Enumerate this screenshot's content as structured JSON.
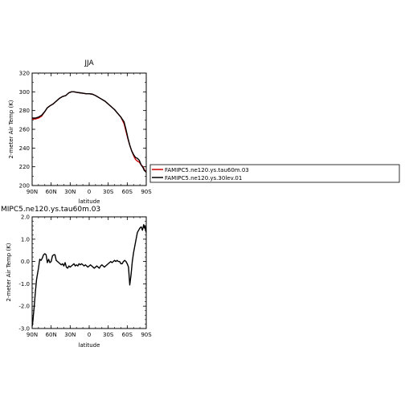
{
  "chart_data": [
    {
      "type": "line",
      "title": "JJA",
      "xlabel": "latitude",
      "ylabel": "2-meter Air Temp (K)",
      "xlim": [
        90,
        -90
      ],
      "ylim": [
        200,
        320
      ],
      "x_tick_values": [
        90,
        60,
        30,
        0,
        -30,
        -60,
        -90
      ],
      "x_tick_labels": [
        "90N",
        "60N",
        "30N",
        "0",
        "30S",
        "60S",
        "90S"
      ],
      "y_tick_values": [
        200,
        220,
        240,
        260,
        280,
        300,
        320
      ],
      "y_tick_labels": [
        "200",
        "220",
        "240",
        "260",
        "280",
        "300",
        "320"
      ],
      "legend_position": "right",
      "series": [
        {
          "name": "FAMIPC5.ne120.ys.tau60m.03",
          "color": "#cc0000",
          "x": [
            90,
            85,
            80,
            75,
            70,
            66,
            62,
            57,
            52,
            47,
            42,
            37,
            32,
            28,
            24,
            20,
            15,
            10,
            5,
            0,
            -5,
            -10,
            -15,
            -20,
            -25,
            -30,
            -35,
            -40,
            -45,
            -50,
            -55,
            -58,
            -61,
            -64,
            -67,
            -70,
            -73,
            -76,
            -79,
            -82,
            -85,
            -87,
            -89,
            -90
          ],
          "y": [
            271,
            271,
            272,
            274,
            279,
            283,
            285,
            287,
            290,
            293,
            295,
            296,
            299,
            300,
            300,
            299.5,
            299,
            298.5,
            298,
            298,
            297.5,
            296,
            294,
            292,
            290,
            287,
            284,
            281,
            277,
            273,
            266,
            258,
            250,
            243,
            237,
            232,
            228,
            226,
            225,
            222,
            220,
            217,
            215,
            214
          ]
        },
        {
          "name": "FAMIPC5.ne120.ys.30lev.01",
          "color": "#000000",
          "x": [
            90,
            85,
            80,
            75,
            70,
            66,
            62,
            57,
            52,
            47,
            42,
            37,
            32,
            28,
            24,
            20,
            15,
            10,
            5,
            0,
            -5,
            -10,
            -15,
            -20,
            -25,
            -30,
            -35,
            -40,
            -45,
            -50,
            -55,
            -58,
            -61,
            -64,
            -67,
            -70,
            -73,
            -76,
            -79,
            -82,
            -85,
            -87,
            -89,
            -90
          ],
          "y": [
            272,
            272,
            273,
            275,
            279,
            283,
            285,
            287,
            290,
            293,
            295,
            296,
            299,
            300,
            300,
            299.5,
            299,
            298.5,
            298,
            298,
            297.5,
            296,
            294,
            292,
            290,
            287,
            284,
            281,
            277,
            273,
            268,
            260,
            251,
            243,
            237,
            233,
            230,
            229,
            227,
            222,
            219,
            216,
            215,
            214
          ]
        }
      ]
    },
    {
      "type": "line",
      "title": "MIPC5.ne120.ys.tau60m.03",
      "xlabel": "latitude",
      "ylabel": "2-meter Air Temp (K)",
      "xlim": [
        90,
        -90
      ],
      "ylim": [
        -3.0,
        2.0
      ],
      "x_tick_values": [
        90,
        60,
        30,
        0,
        -30,
        -60,
        -90
      ],
      "x_tick_labels": [
        "90N",
        "60N",
        "30N",
        "0",
        "30S",
        "60S",
        "90S"
      ],
      "y_tick_values": [
        -3.0,
        -2.0,
        -1.0,
        0.0,
        1.0,
        2.0
      ],
      "y_tick_labels": [
        "-3.0",
        "-2.0",
        "-1.0",
        "0.0",
        "1.0",
        "2.0"
      ],
      "series": [
        {
          "color": "#000000",
          "x": [
            90,
            89,
            87,
            85,
            83,
            80,
            78,
            76,
            74,
            72,
            70,
            68,
            66,
            64,
            62,
            60,
            58,
            56,
            54,
            52,
            50,
            48,
            46,
            44,
            42,
            40,
            38,
            36,
            34,
            32,
            30,
            28,
            26,
            24,
            22,
            20,
            18,
            16,
            14,
            12,
            10,
            8,
            6,
            4,
            2,
            0,
            -2,
            -4,
            -6,
            -8,
            -10,
            -12,
            -14,
            -16,
            -18,
            -20,
            -22,
            -24,
            -26,
            -28,
            -30,
            -32,
            -34,
            -36,
            -38,
            -40,
            -42,
            -44,
            -46,
            -48,
            -50,
            -52,
            -54,
            -56,
            -58,
            -60,
            -62,
            -64,
            -66,
            -68,
            -70,
            -72,
            -74,
            -76,
            -78,
            -80,
            -82,
            -84,
            -86,
            -87,
            -88,
            -89,
            -90
          ],
          "y": [
            -2.9,
            -2.7,
            -2.1,
            -1.4,
            -0.8,
            -0.3,
            0.1,
            0.05,
            0.15,
            0.3,
            0.35,
            0.3,
            -0.05,
            0.1,
            -0.05,
            0.0,
            0.25,
            0.3,
            0.3,
            0.05,
            0.0,
            -0.05,
            -0.1,
            -0.15,
            -0.1,
            -0.2,
            -0.05,
            -0.25,
            -0.3,
            -0.2,
            -0.25,
            -0.2,
            -0.15,
            -0.1,
            -0.2,
            -0.15,
            -0.2,
            -0.1,
            -0.15,
            -0.1,
            -0.15,
            -0.2,
            -0.15,
            -0.2,
            -0.25,
            -0.2,
            -0.15,
            -0.2,
            -0.25,
            -0.3,
            -0.25,
            -0.2,
            -0.25,
            -0.3,
            -0.2,
            -0.15,
            -0.2,
            -0.25,
            -0.2,
            -0.15,
            -0.1,
            -0.05,
            0.0,
            -0.05,
            0.0,
            0.05,
            0.0,
            0.05,
            0.0,
            0.0,
            -0.1,
            -0.1,
            0.0,
            0.05,
            0.0,
            -0.1,
            -0.25,
            -1.05,
            -0.6,
            0.0,
            0.4,
            0.7,
            1.0,
            1.3,
            1.4,
            1.5,
            1.55,
            1.4,
            1.65,
            1.5,
            1.6,
            1.4,
            1.3
          ]
        }
      ]
    }
  ]
}
